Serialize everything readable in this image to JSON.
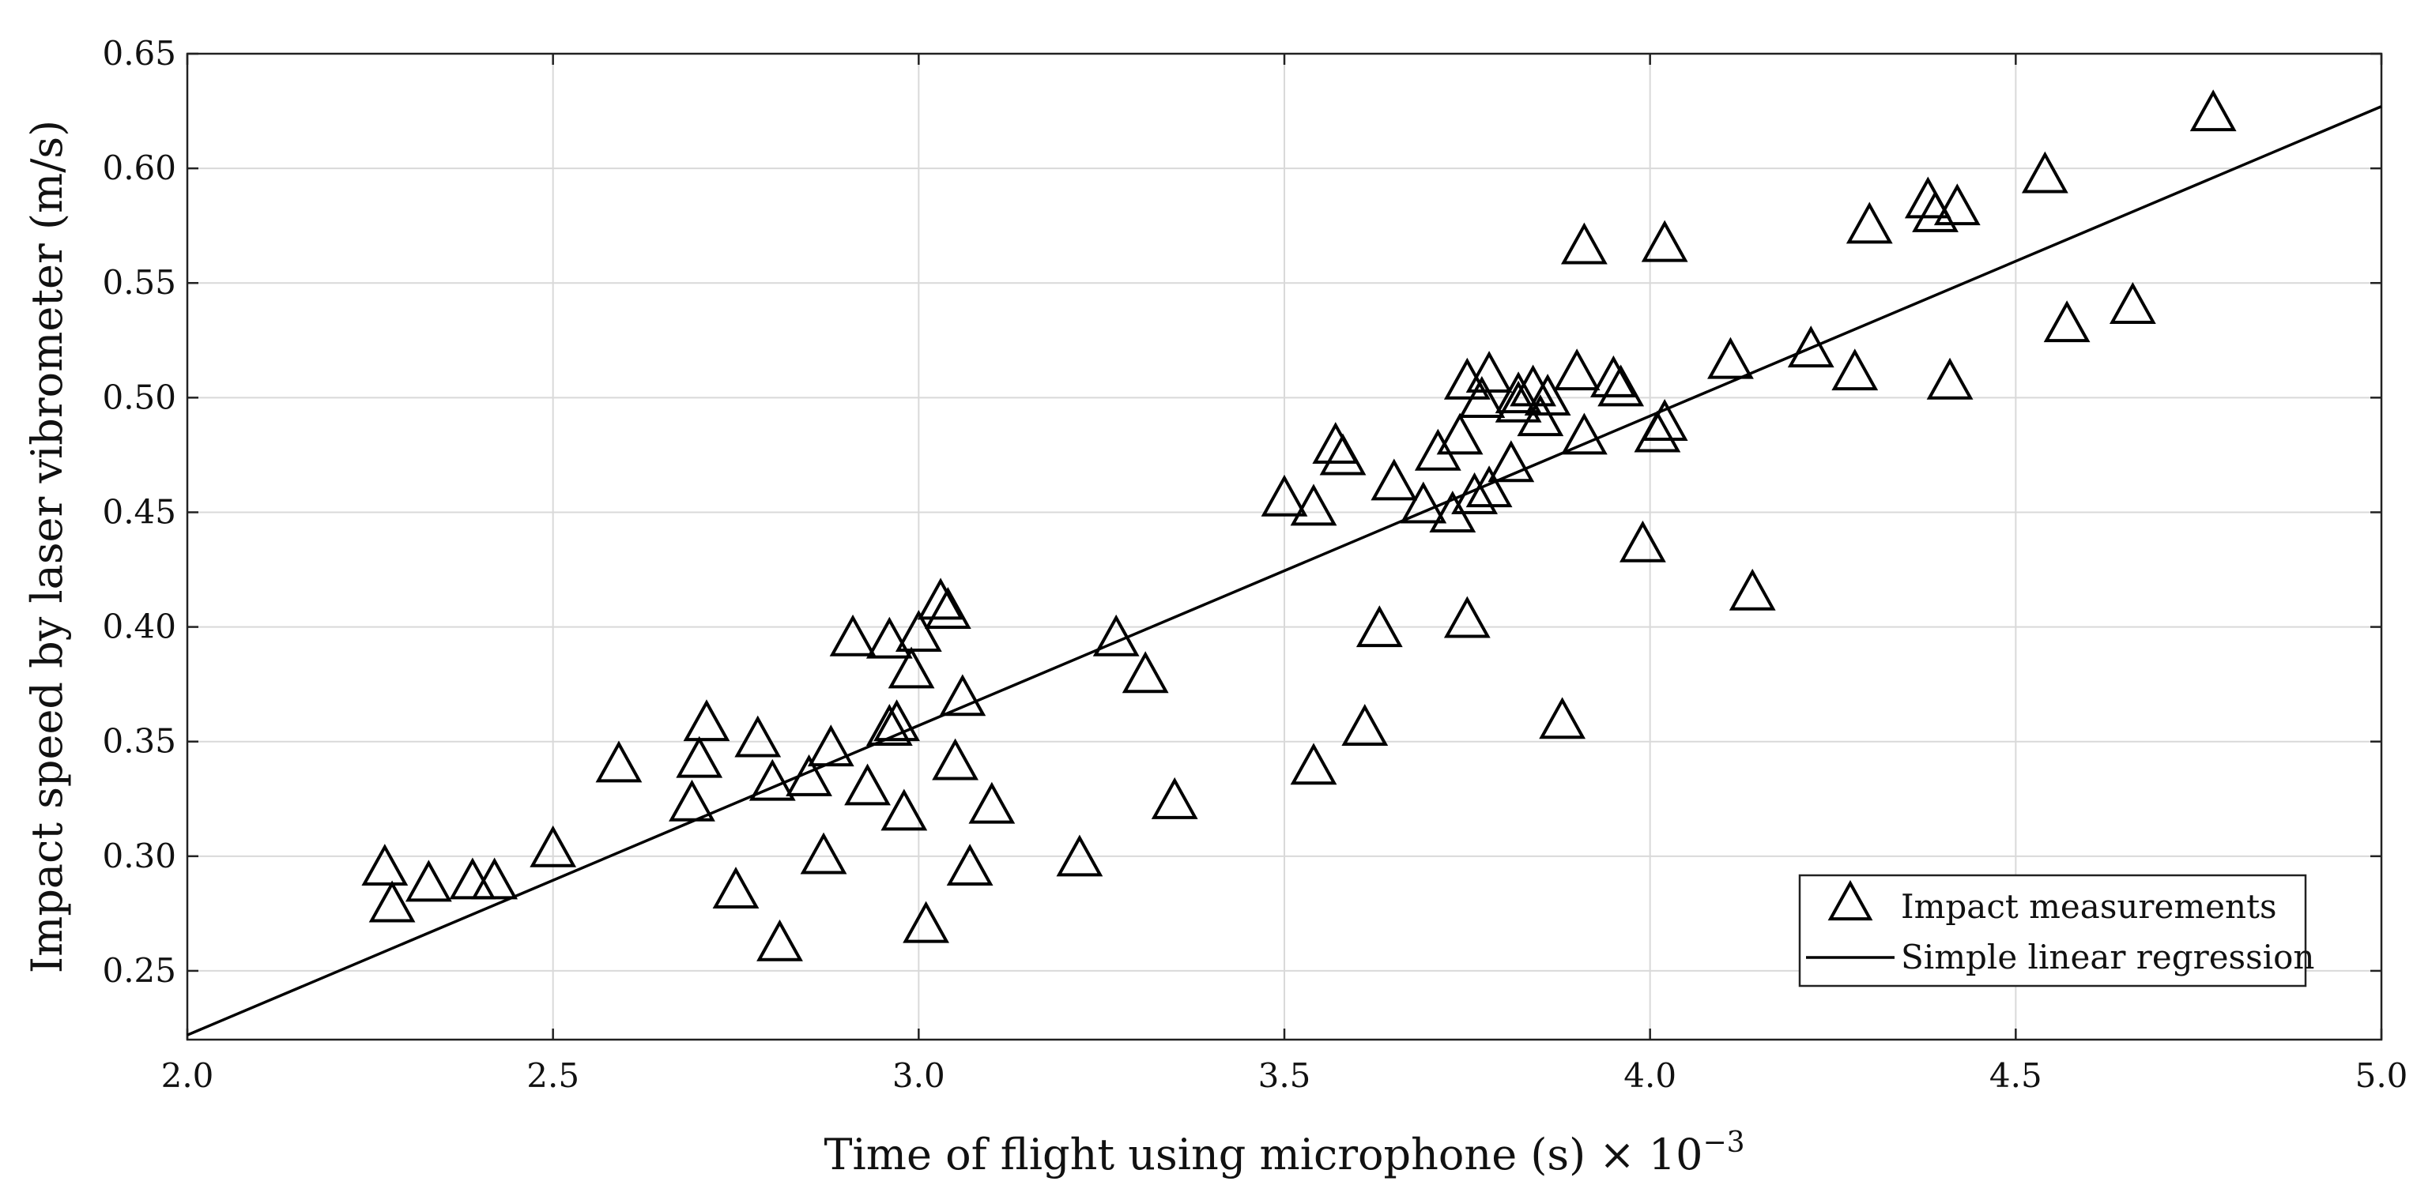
{
  "chart_data": {
    "type": "scatter",
    "xlabel": "Time of flight using microphone (s) × 10",
    "xlabel_exponent": "−3",
    "ylabel": "Impact speed by laser vibrometer (m/s)",
    "xlim": [
      2.0,
      5.0
    ],
    "ylim": [
      0.22,
      0.65
    ],
    "x_ticks": [
      "2.0",
      "2.5",
      "3.0",
      "3.5",
      "4.0",
      "4.5",
      "5.0"
    ],
    "y_ticks": [
      "0.25",
      "0.30",
      "0.35",
      "0.40",
      "0.45",
      "0.50",
      "0.55",
      "0.60",
      "0.65"
    ],
    "grid": true,
    "legend_position": "bottom-right",
    "colors": {
      "marker": "#000000",
      "line": "#000000",
      "grid": "#d9d9d9"
    },
    "series": [
      {
        "name": "Impact measurements",
        "kind": "scatter",
        "marker": "triangle-open",
        "x": [
          2.27,
          2.28,
          2.33,
          2.39,
          2.42,
          2.5,
          2.59,
          2.69,
          2.7,
          2.71,
          2.75,
          2.78,
          2.8,
          2.81,
          2.85,
          2.87,
          2.88,
          2.91,
          2.93,
          2.96,
          2.96,
          2.97,
          2.98,
          2.99,
          3.0,
          3.01,
          3.03,
          3.04,
          3.05,
          3.06,
          3.07,
          3.1,
          3.22,
          3.27,
          3.31,
          3.35,
          3.5,
          3.54,
          3.54,
          3.57,
          3.58,
          3.61,
          3.63,
          3.65,
          3.69,
          3.71,
          3.73,
          3.74,
          3.75,
          3.75,
          3.76,
          3.77,
          3.78,
          3.78,
          3.81,
          3.82,
          3.82,
          3.84,
          3.85,
          3.86,
          3.88,
          3.9,
          3.91,
          3.91,
          3.95,
          3.96,
          3.99,
          4.01,
          4.02,
          4.02,
          4.11,
          4.14,
          4.22,
          4.28,
          4.3,
          4.38,
          4.39,
          4.41,
          4.42,
          4.54,
          4.57,
          4.66,
          4.77
        ],
        "y": [
          0.294,
          0.278,
          0.287,
          0.288,
          0.288,
          0.302,
          0.339,
          0.322,
          0.341,
          0.357,
          0.284,
          0.35,
          0.331,
          0.261,
          0.333,
          0.299,
          0.346,
          0.394,
          0.329,
          0.355,
          0.393,
          0.357,
          0.318,
          0.38,
          0.396,
          0.269,
          0.41,
          0.406,
          0.34,
          0.368,
          0.294,
          0.321,
          0.298,
          0.394,
          0.378,
          0.323,
          0.455,
          0.338,
          0.451,
          0.478,
          0.473,
          0.355,
          0.398,
          0.462,
          0.452,
          0.475,
          0.448,
          0.482,
          0.402,
          0.506,
          0.456,
          0.498,
          0.509,
          0.459,
          0.47,
          0.496,
          0.5,
          0.503,
          0.49,
          0.499,
          0.358,
          0.51,
          0.565,
          0.482,
          0.507,
          0.503,
          0.435,
          0.483,
          0.566,
          0.488,
          0.515,
          0.414,
          0.52,
          0.51,
          0.574,
          0.585,
          0.579,
          0.506,
          0.582,
          0.596,
          0.531,
          0.539,
          0.623
        ]
      },
      {
        "name": "Simple linear regression",
        "kind": "line",
        "x": [
          2.0,
          5.0
        ],
        "y": [
          0.222,
          0.627
        ]
      }
    ]
  }
}
